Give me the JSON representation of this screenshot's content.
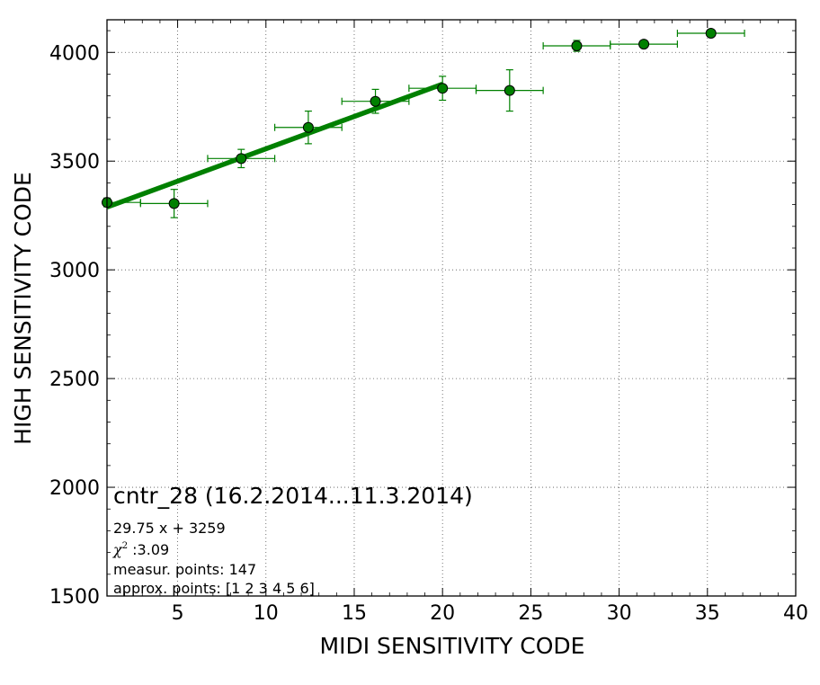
{
  "chart_data": {
    "type": "scatter",
    "xlabel": "MIDI SENSITIVITY CODE",
    "ylabel": "HIGH SENSITIVITY CODE",
    "xlim": [
      1,
      40
    ],
    "ylim": [
      1500,
      4150
    ],
    "xticks": [
      5,
      10,
      15,
      20,
      25,
      30,
      35,
      40
    ],
    "yticks": [
      1500,
      2000,
      2500,
      3000,
      3500,
      4000
    ],
    "grid": true,
    "marker_color": "#008000",
    "fit_color": "#008000",
    "points": [
      {
        "x": 1.0,
        "y": 3310,
        "xerr": 1.9,
        "yerr": 20
      },
      {
        "x": 4.8,
        "y": 3305,
        "xerr": 1.9,
        "yerr": 65
      },
      {
        "x": 8.6,
        "y": 3512,
        "xerr": 1.9,
        "yerr": 42
      },
      {
        "x": 12.4,
        "y": 3655,
        "xerr": 1.9,
        "yerr": 75
      },
      {
        "x": 16.2,
        "y": 3775,
        "xerr": 1.9,
        "yerr": 55
      },
      {
        "x": 20.0,
        "y": 3835,
        "xerr": 1.9,
        "yerr": 55
      },
      {
        "x": 23.8,
        "y": 3825,
        "xerr": 1.9,
        "yerr": 95
      },
      {
        "x": 27.6,
        "y": 4030,
        "xerr": 1.9,
        "yerr": 25
      },
      {
        "x": 31.4,
        "y": 4038,
        "xerr": 1.9,
        "yerr": 10
      },
      {
        "x": 35.2,
        "y": 4088,
        "xerr": 1.9,
        "yerr": 10
      }
    ],
    "fit": {
      "slope": 29.75,
      "intercept": 3259,
      "x_range": [
        1,
        20
      ]
    },
    "annotations": {
      "title": "cntr_28 (16.2.2014...11.3.2014)",
      "equation": "29.75 x + 3259",
      "chi_symbol": "χ",
      "chi_sup": "2",
      "chi_value": " :3.09",
      "points_line": "measur. points: 147",
      "approx_line": "approx. points: [1 2 3 4 5 6]"
    }
  }
}
